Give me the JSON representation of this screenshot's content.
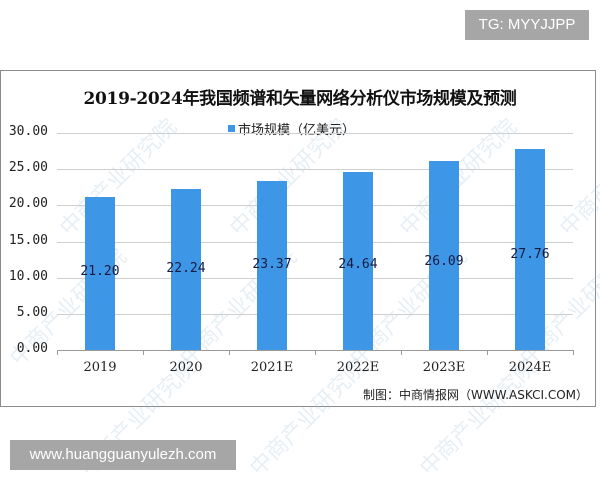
{
  "badges": {
    "top_right": "TG: MYYJJPP",
    "bottom_left": "www.huangguanyulezh.com"
  },
  "watermark": "中商产业研究院",
  "chart_data": {
    "type": "bar",
    "title": "2019-2024年我国频谱和矢量网络分析仪市场规模及预测",
    "categories": [
      "2019",
      "2020",
      "2021E",
      "2022E",
      "2023E",
      "2024E"
    ],
    "series": [
      {
        "name": "市场规模（亿美元）",
        "values": [
          21.2,
          22.24,
          23.37,
          24.64,
          26.09,
          27.76
        ],
        "color": "#3d97e6"
      }
    ],
    "value_labels": [
      "21.20",
      "22.24",
      "23.37",
      "24.64",
      "26.09",
      "27.76"
    ],
    "yticks": [
      "0.00",
      "5.00",
      "10.00",
      "15.00",
      "20.00",
      "25.00",
      "30.00"
    ],
    "ylim": [
      0,
      30
    ],
    "xlabel": "",
    "ylabel": "",
    "grid": true,
    "legend_position": "top",
    "source": "制图：中商情报网（WWW.ASKCI.COM）"
  }
}
